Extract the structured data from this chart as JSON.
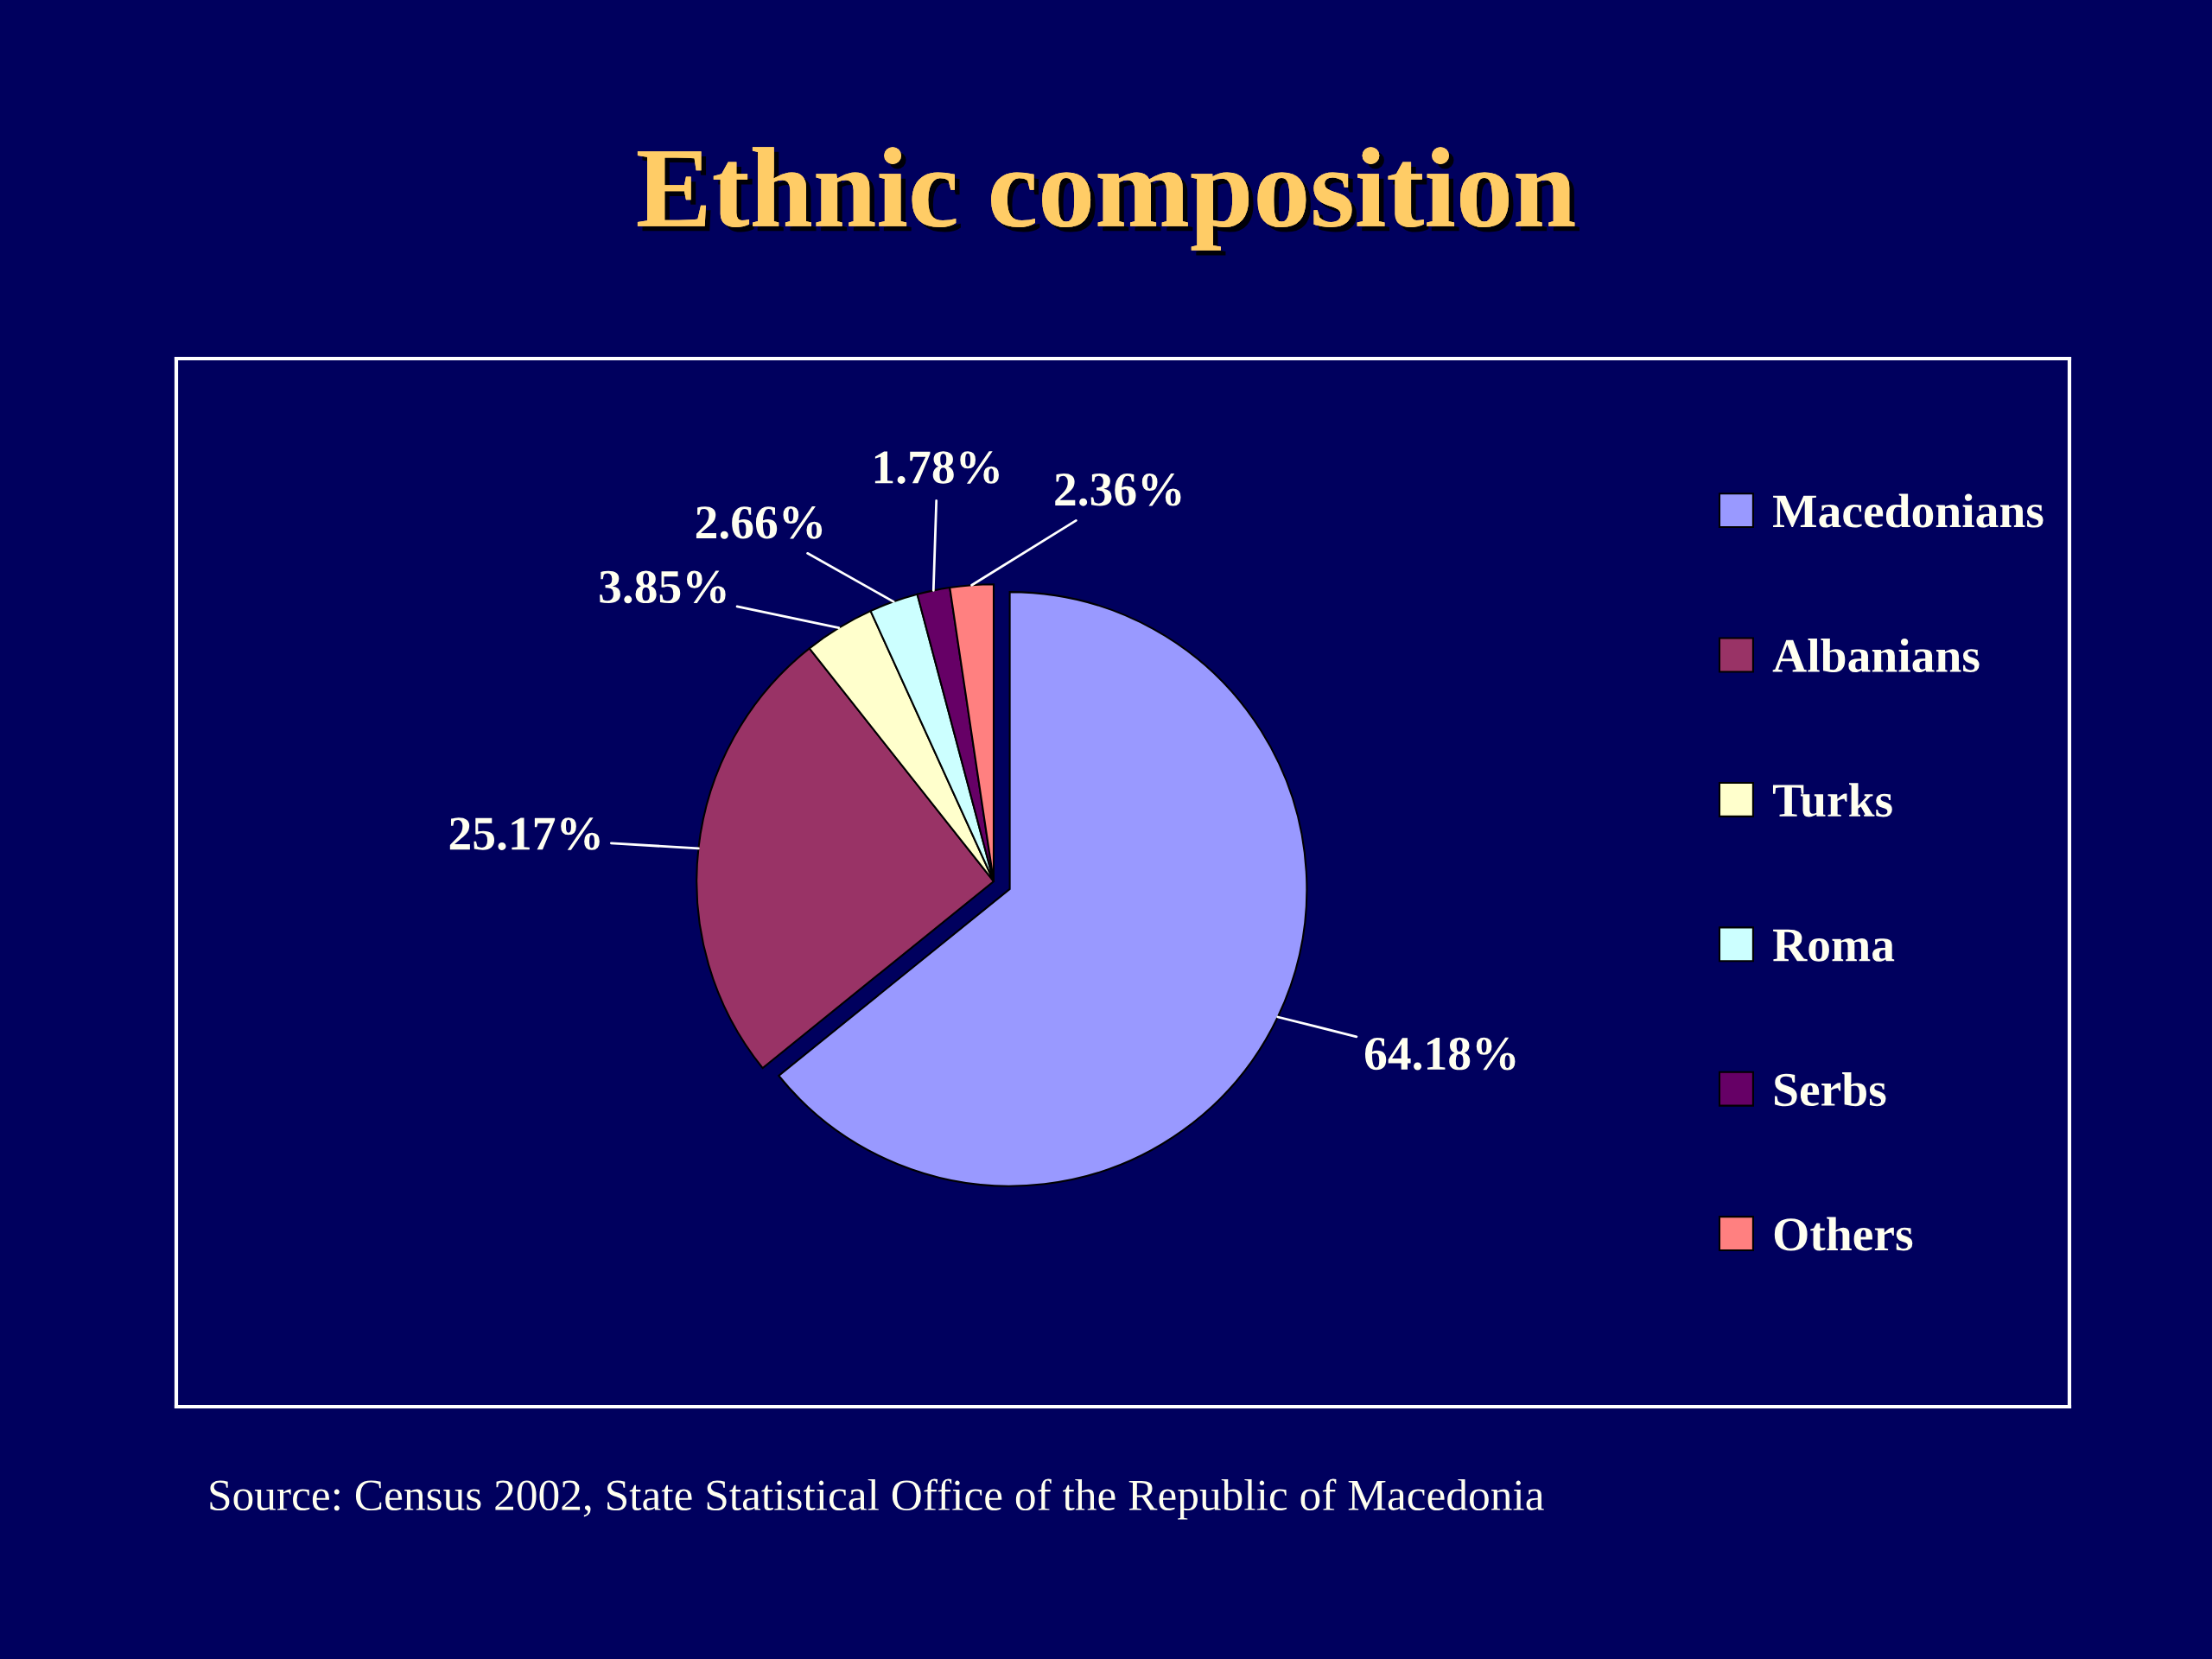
{
  "chart_data": {
    "type": "pie",
    "title": "Ethnic composition",
    "categories": [
      "Macedonians",
      "Albanians",
      "Turks",
      "Roma",
      "Serbs",
      "Others"
    ],
    "values": [
      64.18,
      25.17,
      3.85,
      2.66,
      1.78,
      2.36
    ],
    "colors": [
      "#9999ff",
      "#993366",
      "#ffffcc",
      "#ccffff",
      "#660066",
      "#ff8080"
    ],
    "value_labels": [
      "64.18%",
      "25.17%",
      "3.85%",
      "2.66%",
      "1.78%",
      "2.36%"
    ],
    "legend": "right",
    "annotations": [
      "Source: Census 2002, State Statistical Office of the Republic of Macedonia"
    ]
  }
}
